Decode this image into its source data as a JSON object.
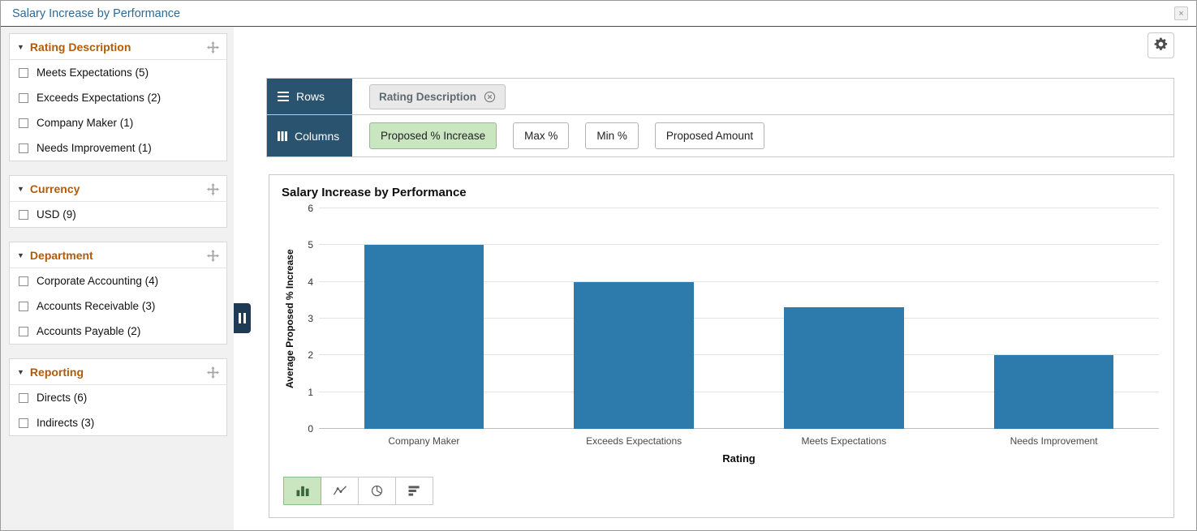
{
  "colors": {
    "title_blue": "#2f6a93",
    "section_orange": "#b05c0a",
    "tab_blue": "#2a536f",
    "handle_blue": "#1e3a54",
    "selected_green": "#c9e6c1",
    "selected_green_border": "#8fbf88",
    "chip_gray": "#e9e9e9",
    "bar_blue": "#2d7aad"
  },
  "window": {
    "title": "Salary Increase by Performance",
    "close": "×"
  },
  "sidebar": {
    "sections": [
      {
        "title": "Rating Description",
        "items": [
          "Meets Expectations (5)",
          "Exceeds Expectations (2)",
          "Company Maker (1)",
          "Needs Improvement (1)"
        ]
      },
      {
        "title": "Currency",
        "items": [
          "USD (9)"
        ]
      },
      {
        "title": "Department",
        "items": [
          "Corporate Accounting (4)",
          "Accounts Receivable (3)",
          "Accounts Payable (2)"
        ]
      },
      {
        "title": "Reporting",
        "items": [
          "Directs (6)",
          "Indirects (3)"
        ]
      }
    ]
  },
  "pivot": {
    "rows_label": "Rows",
    "columns_label": "Columns",
    "row_chips": [
      {
        "label": "Rating Description"
      }
    ],
    "column_options": [
      {
        "label": "Proposed % Increase",
        "selected": true
      },
      {
        "label": "Max %",
        "selected": false
      },
      {
        "label": "Min %",
        "selected": false
      },
      {
        "label": "Proposed Amount",
        "selected": false
      }
    ]
  },
  "chart_data": {
    "type": "bar",
    "title": "Salary Increase by Performance",
    "categories": [
      "Company Maker",
      "Exceeds Expectations",
      "Meets Expectations",
      "Needs Improvement"
    ],
    "values": [
      5,
      4,
      3.3,
      2
    ],
    "xlabel": "Rating",
    "ylabel": "Average Proposed % Increase",
    "ylim": [
      0,
      6
    ],
    "yticks": [
      0,
      1,
      2,
      3,
      4,
      5,
      6
    ],
    "bar_color": "#2d7aad",
    "grid": true,
    "legend": false
  },
  "chart_toolbar": [
    {
      "icon": "bar-chart-icon",
      "selected": true
    },
    {
      "icon": "line-chart-icon",
      "selected": false
    },
    {
      "icon": "pie-chart-icon",
      "selected": false
    },
    {
      "icon": "horizontal-bar-chart-icon",
      "selected": false
    }
  ],
  "icons": {
    "gear-icon": "gear",
    "close-icon": "x",
    "collapse-triangle-icon": "▼",
    "move-icon": "four-direction-arrow",
    "rows-icon": "hamburger-lines",
    "columns-icon": "vertical-bars",
    "remove-chip-icon": "circled-x",
    "sidebar-collapse-icon": "pause-bars"
  }
}
